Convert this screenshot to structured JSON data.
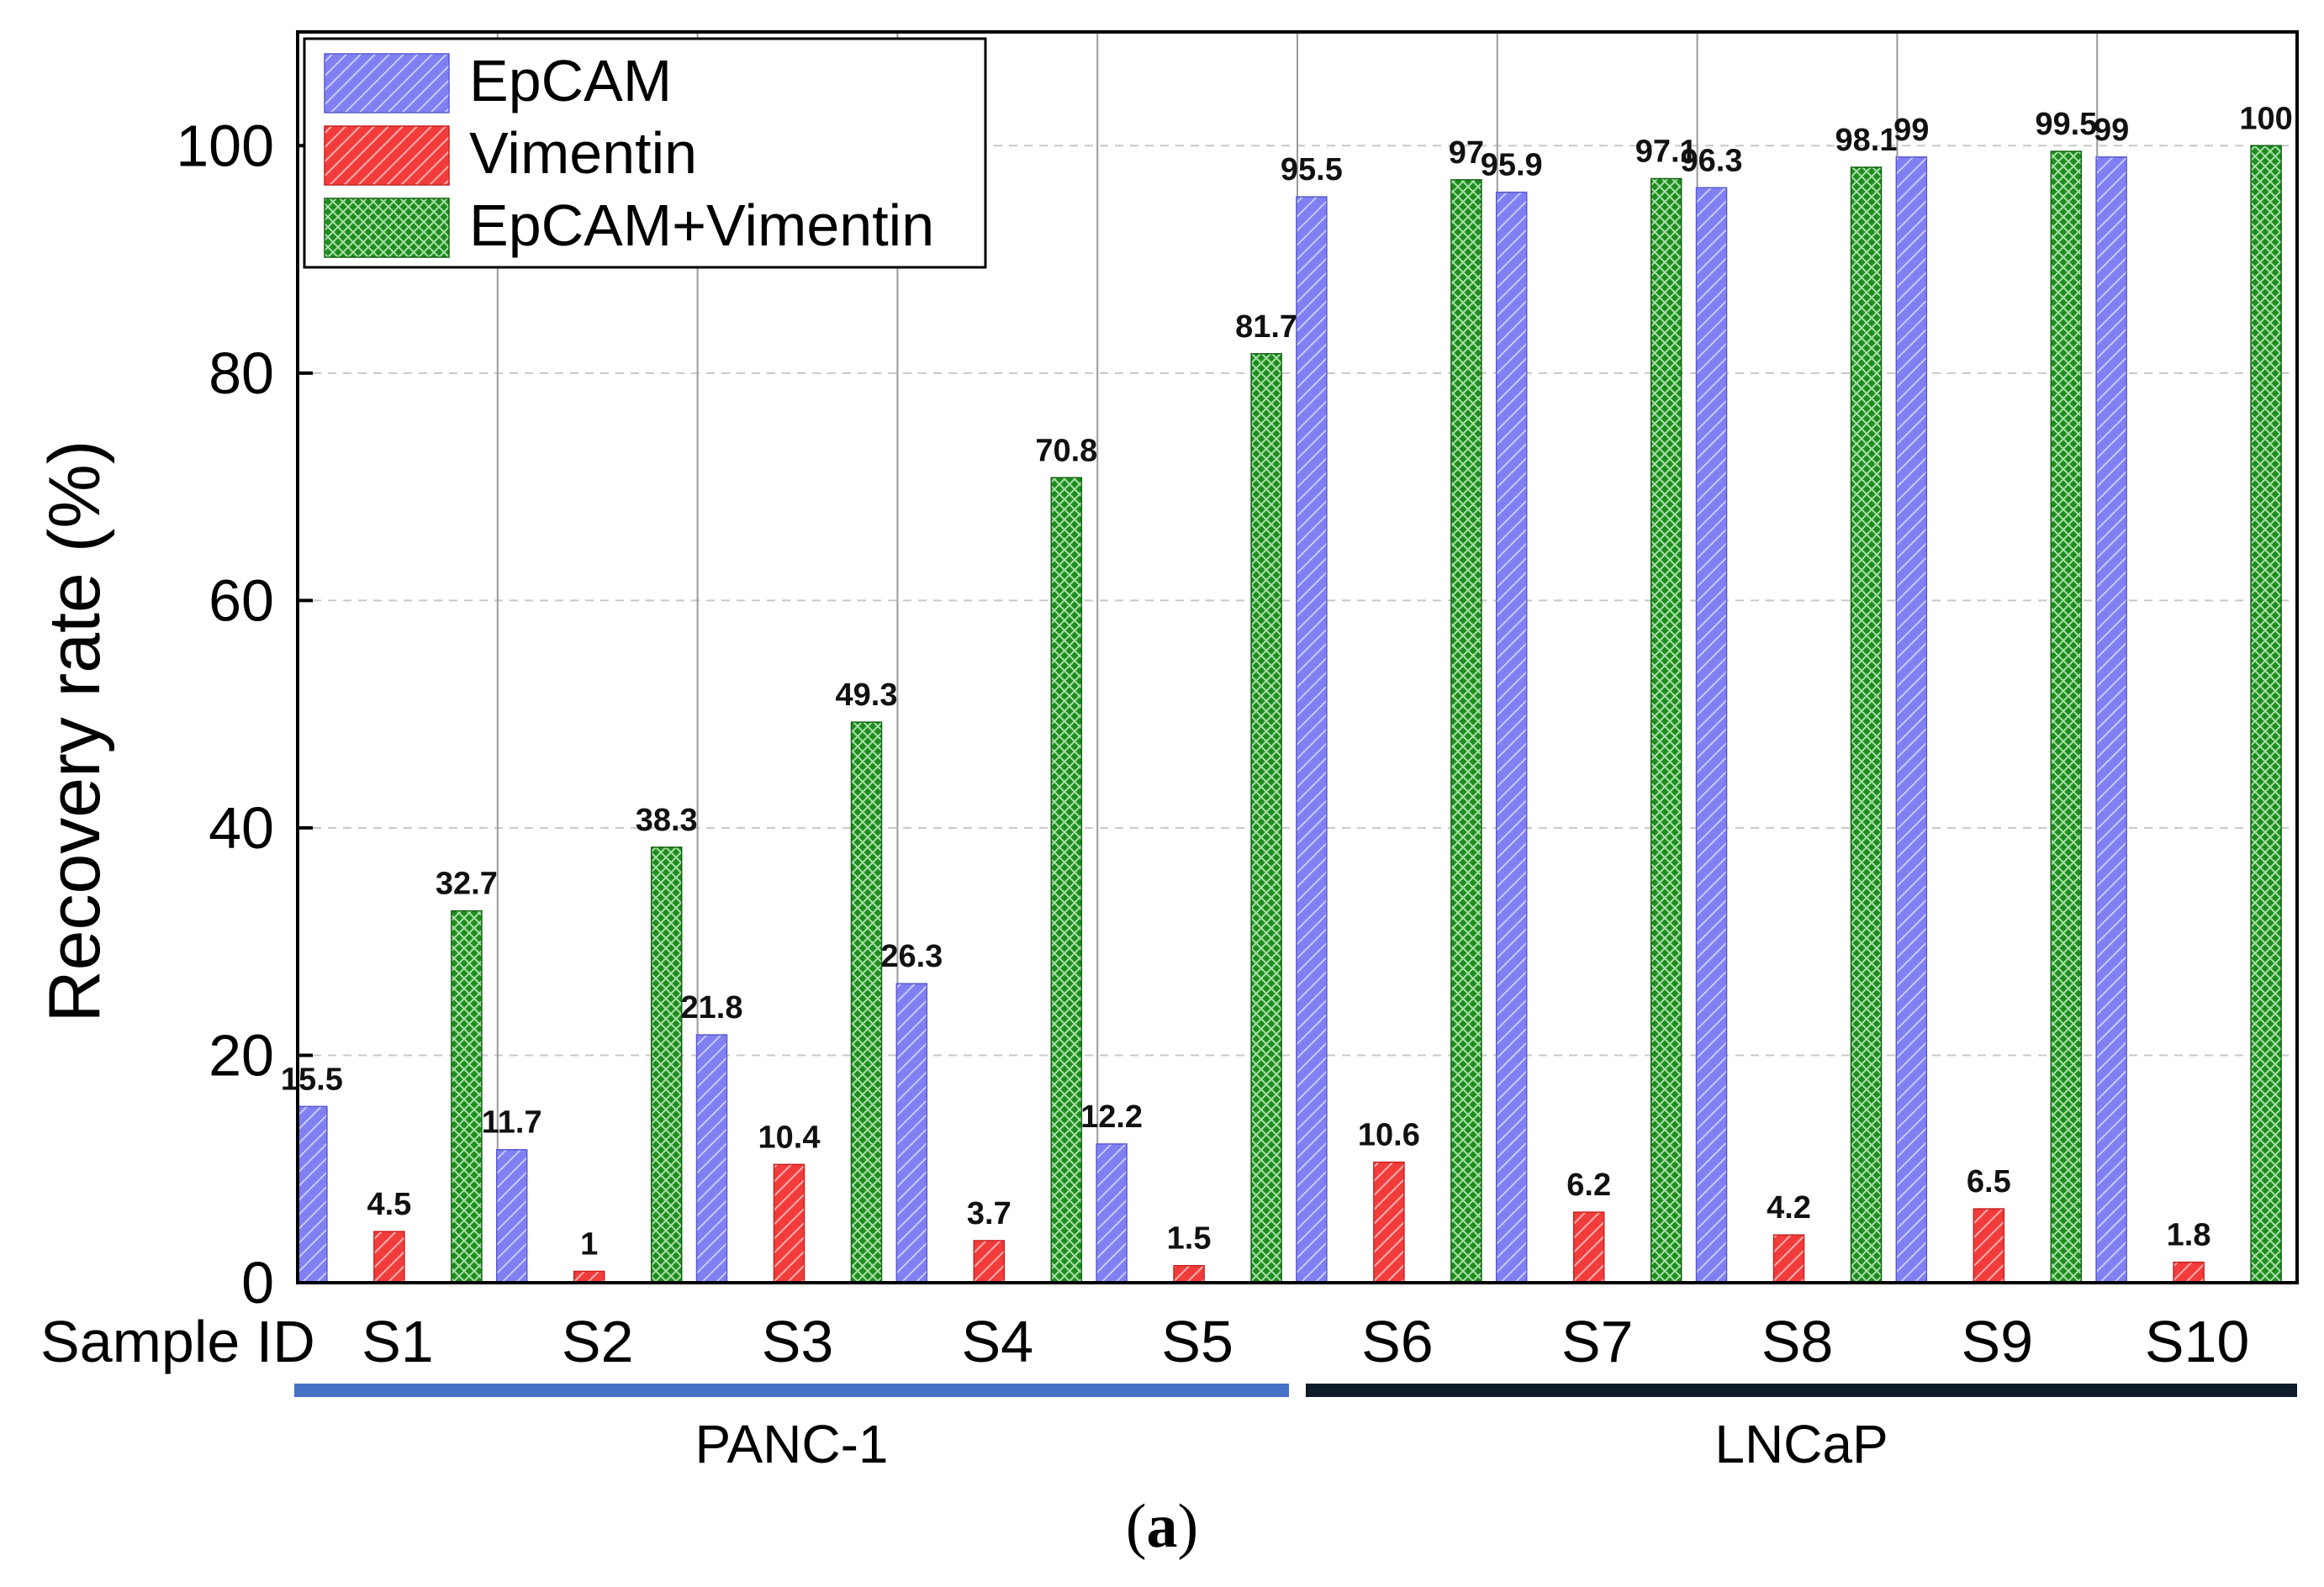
{
  "chart_data": {
    "type": "bar",
    "ylabel": "Recovery rate (%)",
    "xlabel": "Sample ID",
    "ylim": [
      0,
      110
    ],
    "yticks": [
      0,
      20,
      40,
      60,
      80,
      100
    ],
    "grid": "horizontal dashed + vertical separators",
    "legend_position": "top-left",
    "categories": [
      "S1",
      "S2",
      "S3",
      "S4",
      "S5",
      "S6",
      "S7",
      "S8",
      "S9",
      "S10"
    ],
    "series": [
      {
        "name": "EpCAM",
        "color": "#7b7bf0",
        "pattern": "diagonal-hatch",
        "values": [
          15.5,
          11.7,
          21.8,
          26.3,
          12.2,
          95.5,
          95.9,
          96.3,
          99,
          99
        ]
      },
      {
        "name": "Vimentin",
        "color": "#f03c3c",
        "pattern": "diagonal-hatch",
        "values": [
          4.5,
          1,
          10.4,
          3.7,
          1.5,
          10.6,
          6.2,
          4.2,
          6.5,
          1.8
        ]
      },
      {
        "name": "EpCAM+Vimentin",
        "color": "#1e8c1e",
        "pattern": "cross-hatch",
        "values": [
          32.7,
          38.3,
          49.3,
          70.8,
          81.7,
          97,
          97.1,
          98.1,
          99.5,
          100
        ]
      }
    ],
    "groups": [
      {
        "label": "PANC-1",
        "categories": [
          "S1",
          "S2",
          "S3",
          "S4",
          "S5"
        ],
        "color": "#4472c4"
      },
      {
        "label": "LNCaP",
        "categories": [
          "S6",
          "S7",
          "S8",
          "S9",
          "S10"
        ],
        "color": "#0d1b2a"
      }
    ]
  },
  "caption": {
    "open": "(",
    "letter": "a",
    "close": ")"
  }
}
